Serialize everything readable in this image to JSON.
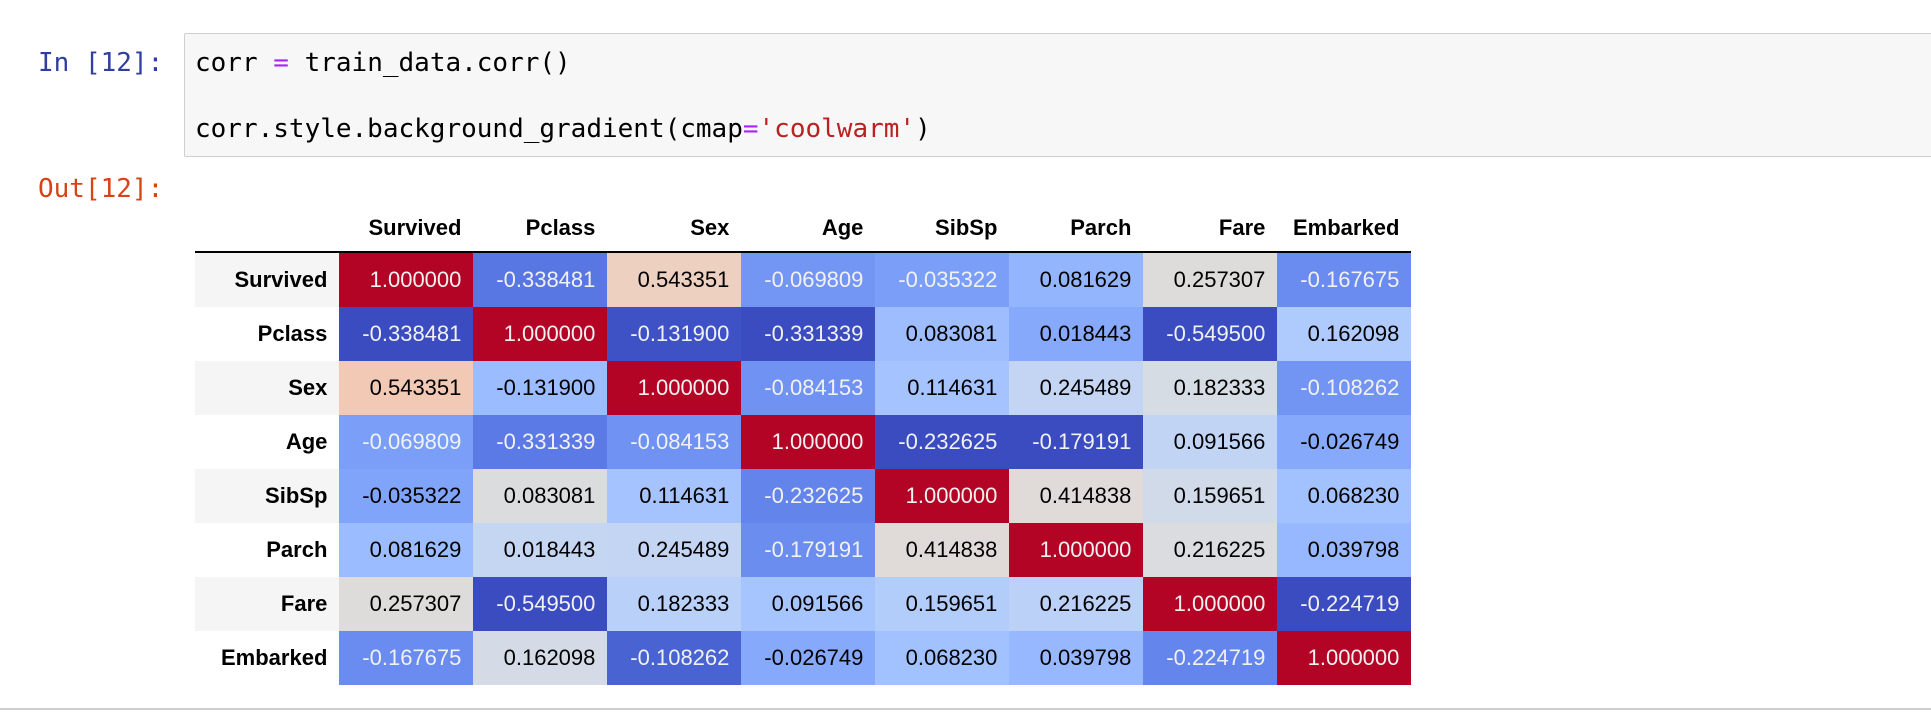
{
  "cell": {
    "in_prompt": "In [12]:",
    "out_prompt": "Out[12]:",
    "code": {
      "line1": {
        "a": "corr ",
        "op": "=",
        "b": " train_data.corr()"
      },
      "line2": {
        "a": "corr.style.background_gradient(cmap",
        "op": "=",
        "str": "'coolwarm'",
        "b": ")"
      }
    }
  },
  "table": {
    "columns": [
      "Survived",
      "Pclass",
      "Sex",
      "Age",
      "SibSp",
      "Parch",
      "Fare",
      "Embarked"
    ],
    "rows": [
      {
        "label": "Survived",
        "values": [
          "1.000000",
          "-0.338481",
          "0.543351",
          "-0.069809",
          "-0.035322",
          "0.081629",
          "0.257307",
          "-0.167675"
        ],
        "bg": [
          "#b40426",
          "#5977e3",
          "#eed0c0",
          "#7396f5",
          "#7b9ff9",
          "#93b5fe",
          "#dedcdb",
          "#6a8bef"
        ]
      },
      {
        "label": "Pclass",
        "values": [
          "-0.338481",
          "1.000000",
          "-0.131900",
          "-0.331339",
          "0.083081",
          "0.018443",
          "-0.549500",
          "0.162098"
        ],
        "bg": [
          "#3b4cc0",
          "#b40426",
          "#3e51c5",
          "#3b4cc0",
          "#9dbdff",
          "#86a9fc",
          "#3b4cc0",
          "#afcafc"
        ]
      },
      {
        "label": "Sex",
        "values": [
          "0.543351",
          "-0.131900",
          "1.000000",
          "-0.084153",
          "0.114631",
          "0.245489",
          "0.182333",
          "-0.108262"
        ],
        "bg": [
          "#f2c9b4",
          "#9bbcff",
          "#b40426",
          "#7093f3",
          "#a5c3fe",
          "#c4d5f3",
          "#d6dce4",
          "#7295f4"
        ]
      },
      {
        "label": "Age",
        "values": [
          "-0.069809",
          "-0.331339",
          "-0.084153",
          "1.000000",
          "-0.232625",
          "-0.179191",
          "0.091566",
          "-0.026749"
        ],
        "bg": [
          "#7b9ff9",
          "#5b7ae5",
          "#7093f3",
          "#b40426",
          "#3b4cc0",
          "#3b4cc0",
          "#c1d4f4",
          "#86a9fc"
        ]
      },
      {
        "label": "SibSp",
        "values": [
          "-0.035322",
          "0.083081",
          "0.114631",
          "-0.232625",
          "1.000000",
          "0.414838",
          "0.159651",
          "0.068230"
        ],
        "bg": [
          "#81a4fb",
          "#dbdcde",
          "#a5c3fe",
          "#6384eb",
          "#b40426",
          "#e0dbd8",
          "#d1dae9",
          "#a2c1ff"
        ]
      },
      {
        "label": "Parch",
        "values": [
          "0.081629",
          "0.018443",
          "0.245489",
          "-0.179191",
          "0.414838",
          "1.000000",
          "0.216225",
          "0.039798"
        ],
        "bg": [
          "#9bbcff",
          "#c5d6f2",
          "#c4d5f3",
          "#6b8df0",
          "#e0dbd8",
          "#b40426",
          "#dadce0",
          "#97b8ff"
        ]
      },
      {
        "label": "Fare",
        "values": [
          "0.257307",
          "-0.549500",
          "0.182333",
          "0.091566",
          "0.159651",
          "0.216225",
          "1.000000",
          "-0.224719"
        ],
        "bg": [
          "#dedcdb",
          "#3b4cc0",
          "#b9d0f9",
          "#a6c4fe",
          "#b3cdfb",
          "#bbd1f8",
          "#b40426",
          "#3b4cc0"
        ]
      },
      {
        "label": "Embarked",
        "values": [
          "-0.167675",
          "0.162098",
          "-0.108262",
          "-0.026749",
          "0.068230",
          "0.039798",
          "-0.224719",
          "1.000000"
        ],
        "bg": [
          "#6a8bef",
          "#d4dbe6",
          "#4a63d3",
          "#86a9fc",
          "#a2c1ff",
          "#97b8ff",
          "#6485ec",
          "#b40426"
        ]
      }
    ]
  }
}
